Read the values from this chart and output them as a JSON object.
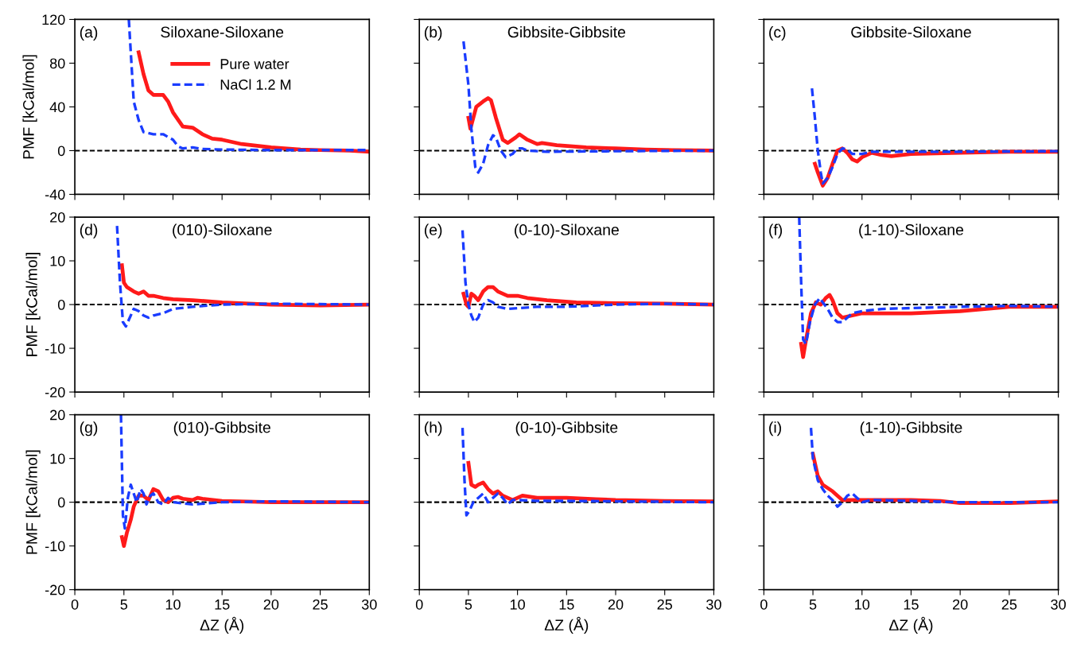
{
  "chart_data": [
    {
      "type": "line",
      "title": "Siloxane-Siloxane",
      "annotations": [
        "(a)"
      ],
      "ylabel": "PMF [kCal/mol]",
      "xlim": [
        0,
        30
      ],
      "xticks": [
        0,
        5,
        10,
        15,
        20,
        25,
        30
      ],
      "ylim": [
        -40,
        120
      ],
      "yticks": [
        -40,
        0,
        40,
        80,
        120
      ],
      "tick_labels": "y",
      "legend": "top right",
      "grid": false,
      "ref_lines": [
        {
          "axis": "y",
          "value": 0,
          "color": "#000000",
          "line_style": "dashed"
        }
      ],
      "series": [
        {
          "name": "Pure water",
          "color": "#ff1a1a",
          "line_style": "solid",
          "x": [
            6.5,
            7,
            7.5,
            8,
            9,
            9.5,
            10,
            11,
            12,
            13,
            14,
            15,
            17,
            20,
            23,
            25,
            28,
            30
          ],
          "values": [
            90,
            70,
            55,
            51,
            51,
            45,
            35,
            22,
            21,
            15,
            11,
            10,
            6,
            3,
            1,
            0.5,
            0,
            -1
          ]
        },
        {
          "name": "NaCl 1.2 M",
          "color": "#1a3cff",
          "line_style": "dashed",
          "x": [
            5.5,
            6,
            6.5,
            7,
            8,
            9,
            10,
            10.5,
            11,
            12,
            13,
            15,
            20,
            25,
            30
          ],
          "values": [
            120,
            45,
            28,
            17,
            15,
            15,
            10,
            4,
            2,
            3,
            1.5,
            1,
            0.5,
            0.5,
            0.5
          ]
        }
      ]
    },
    {
      "type": "line",
      "title": "Gibbsite-Gibbsite",
      "annotations": [
        "(b)"
      ],
      "xlim": [
        0,
        30
      ],
      "xticks": [
        0,
        5,
        10,
        15,
        20,
        25,
        30
      ],
      "ylim": [
        -40,
        120
      ],
      "yticks": [
        -40,
        0,
        40,
        80,
        120
      ],
      "tick_labels": false,
      "grid": false,
      "ref_lines": [
        {
          "axis": "y",
          "value": 0,
          "color": "#000000",
          "line_style": "dashed"
        }
      ],
      "series": [
        {
          "color": "#ff1a1a",
          "line_style": "solid",
          "x": [
            5,
            5.2,
            5.8,
            6.5,
            7,
            7.3,
            7.8,
            8.5,
            9,
            9.8,
            10.2,
            11,
            12,
            12.5,
            14,
            17,
            20,
            23,
            26,
            30
          ],
          "values": [
            30,
            20,
            40,
            45,
            48,
            46,
            30,
            10,
            7,
            12,
            15,
            10,
            6,
            7,
            5,
            3,
            2,
            1,
            0.5,
            0
          ]
        },
        {
          "color": "#1a3cff",
          "line_style": "dashed",
          "x": [
            4.5,
            5,
            5.3,
            5.7,
            6,
            6.5,
            7,
            7.5,
            7.8,
            8.3,
            8.8,
            9.5,
            10,
            10.5,
            11,
            13,
            20,
            30
          ],
          "values": [
            100,
            60,
            20,
            -15,
            -20,
            -12,
            5,
            14,
            12,
            0,
            -6,
            -3,
            2,
            2,
            0,
            -1,
            -0.5,
            0
          ]
        }
      ]
    },
    {
      "type": "line",
      "title": "Gibbsite-Siloxane",
      "annotations": [
        "(c)"
      ],
      "xlim": [
        0,
        30
      ],
      "xticks": [
        0,
        5,
        10,
        15,
        20,
        25,
        30
      ],
      "ylim": [
        -40,
        120
      ],
      "yticks": [
        -40,
        0,
        40,
        80,
        120
      ],
      "tick_labels": false,
      "grid": false,
      "ref_lines": [
        {
          "axis": "y",
          "value": 0,
          "color": "#000000",
          "line_style": "dashed"
        }
      ],
      "series": [
        {
          "color": "#ff1a1a",
          "line_style": "solid",
          "x": [
            5.2,
            5.5,
            6,
            6.5,
            7,
            7.5,
            8,
            8.5,
            9,
            9.5,
            10,
            11,
            12,
            13,
            15,
            20,
            25,
            30
          ],
          "values": [
            -12,
            -20,
            -32,
            -25,
            -12,
            0,
            2,
            -2,
            -8,
            -10,
            -6,
            -2,
            -4,
            -5,
            -3,
            -2,
            -1,
            -1
          ]
        },
        {
          "color": "#1a3cff",
          "line_style": "dashed",
          "x": [
            4.9,
            5.2,
            5.5,
            5.8,
            6,
            6.5,
            7,
            7.5,
            8,
            8.5,
            9,
            10,
            11,
            12,
            15,
            20,
            30
          ],
          "values": [
            57,
            30,
            0,
            -20,
            -30,
            -25,
            -15,
            -3,
            2,
            1,
            -3,
            -3,
            -1,
            -1,
            -1,
            -1,
            -0.5
          ]
        }
      ]
    },
    {
      "type": "line",
      "title": "(010)-Siloxane",
      "annotations": [
        "(d)"
      ],
      "ylabel": "PMF [kCal/mol]",
      "xlim": [
        0,
        30
      ],
      "xticks": [
        0,
        5,
        10,
        15,
        20,
        25,
        30
      ],
      "ylim": [
        -20,
        20
      ],
      "yticks": [
        -20,
        -10,
        0,
        10,
        20
      ],
      "tick_labels": "y",
      "grid": false,
      "ref_lines": [
        {
          "axis": "y",
          "value": 0,
          "color": "#000000",
          "line_style": "dashed"
        }
      ],
      "series": [
        {
          "color": "#ff1a1a",
          "line_style": "solid",
          "x": [
            4.8,
            5,
            5.3,
            6,
            6.5,
            7,
            7.5,
            8,
            9,
            10,
            12,
            15,
            20,
            25,
            30
          ],
          "values": [
            9,
            5,
            4,
            3,
            2.5,
            3,
            2,
            2,
            1.5,
            1.2,
            1,
            0.5,
            0,
            -0.2,
            0
          ]
        },
        {
          "color": "#1a3cff",
          "line_style": "dashed",
          "x": [
            4.3,
            4.6,
            4.9,
            5.2,
            5.6,
            6,
            6.5,
            7,
            7.5,
            8,
            9,
            10,
            12,
            15,
            20,
            30
          ],
          "values": [
            18,
            5,
            -4,
            -5,
            -3,
            -1,
            -1.5,
            -2.5,
            -3,
            -2.5,
            -2,
            -1,
            -0.5,
            0,
            0.2,
            0
          ]
        }
      ]
    },
    {
      "type": "line",
      "title": "(0-10)-Siloxane",
      "annotations": [
        "(e)"
      ],
      "xlim": [
        0,
        30
      ],
      "xticks": [
        0,
        5,
        10,
        15,
        20,
        25,
        30
      ],
      "ylim": [
        -20,
        20
      ],
      "yticks": [
        -20,
        -10,
        0,
        10,
        20
      ],
      "tick_labels": false,
      "grid": false,
      "ref_lines": [
        {
          "axis": "y",
          "value": 0,
          "color": "#000000",
          "line_style": "dashed"
        }
      ],
      "series": [
        {
          "color": "#ff1a1a",
          "line_style": "solid",
          "x": [
            4.5,
            4.8,
            5,
            5.3,
            5.6,
            6,
            6.5,
            7,
            7.5,
            8,
            9,
            10,
            11,
            13,
            16,
            20,
            25,
            30
          ],
          "values": [
            2.5,
            0,
            -0.5,
            2.5,
            2,
            1,
            3,
            4,
            4,
            3,
            2,
            2,
            1.5,
            1,
            0.5,
            0.3,
            0.2,
            0
          ]
        },
        {
          "color": "#1a3cff",
          "line_style": "dashed",
          "x": [
            4.4,
            4.7,
            5,
            5.3,
            5.6,
            6,
            6.5,
            7,
            7.5,
            8,
            9,
            12,
            15,
            20,
            25,
            30
          ],
          "values": [
            17,
            5,
            0,
            -2.5,
            -4,
            -3,
            0,
            1,
            0.5,
            -0.5,
            -1,
            -0.5,
            -0.5,
            0,
            0.2,
            0
          ]
        }
      ]
    },
    {
      "type": "line",
      "title": "(1-10)-Siloxane",
      "annotations": [
        "(f)"
      ],
      "xlim": [
        0,
        30
      ],
      "xticks": [
        0,
        5,
        10,
        15,
        20,
        25,
        30
      ],
      "ylim": [
        -20,
        20
      ],
      "yticks": [
        -20,
        -10,
        0,
        10,
        20
      ],
      "tick_labels": false,
      "grid": false,
      "ref_lines": [
        {
          "axis": "y",
          "value": 0,
          "color": "#000000",
          "line_style": "dashed"
        }
      ],
      "series": [
        {
          "color": "#ff1a1a",
          "line_style": "solid",
          "x": [
            3.8,
            4,
            4.3,
            4.8,
            5.3,
            5.8,
            6.3,
            6.7,
            7,
            7.5,
            8,
            9,
            10,
            12,
            15,
            20,
            25,
            30
          ],
          "values": [
            -9,
            -12,
            -8,
            -2,
            0.5,
            0,
            1.5,
            2.2,
            1,
            -2,
            -3,
            -2.5,
            -2,
            -2,
            -2,
            -1.5,
            -0.5,
            -0.5
          ]
        },
        {
          "color": "#1a3cff",
          "line_style": "dashed",
          "x": [
            3.6,
            3.8,
            4,
            4.3,
            4.7,
            5.2,
            5.7,
            6,
            6.5,
            7,
            7.5,
            8,
            8.5,
            9,
            10,
            12,
            15,
            20,
            25,
            30
          ],
          "values": [
            20,
            5,
            -8,
            -9,
            -4,
            0,
            1.5,
            0.5,
            -1,
            -3,
            -4,
            -4,
            -3,
            -2,
            -1.5,
            -1,
            -0.8,
            -0.5,
            -0.3,
            -0.5
          ]
        }
      ]
    },
    {
      "type": "line",
      "title": "(010)-Gibbsite",
      "annotations": [
        "(g)"
      ],
      "xlabel": "ΔZ (Å)",
      "ylabel": "PMF [kCal/mol]",
      "xlim": [
        0,
        30
      ],
      "xticks": [
        0,
        5,
        10,
        15,
        20,
        25,
        30
      ],
      "ylim": [
        -20,
        20
      ],
      "yticks": [
        -20,
        -10,
        0,
        10,
        20
      ],
      "grid": false,
      "ref_lines": [
        {
          "axis": "y",
          "value": 0,
          "color": "#000000",
          "line_style": "dashed"
        }
      ],
      "series": [
        {
          "color": "#ff1a1a",
          "line_style": "solid",
          "x": [
            4.8,
            5,
            5.3,
            5.7,
            6,
            6.5,
            7,
            7.5,
            8,
            8.5,
            9,
            9.5,
            10,
            10.5,
            11,
            12,
            12.5,
            13,
            15,
            20,
            25,
            30
          ],
          "values": [
            -8,
            -10,
            -7,
            -4,
            -1,
            1.5,
            1.5,
            0.5,
            3,
            2.5,
            0.5,
            0,
            1,
            1.2,
            0.8,
            0.5,
            1,
            0.8,
            0.3,
            0,
            0,
            0
          ]
        },
        {
          "color": "#1a3cff",
          "line_style": "dashed",
          "x": [
            4.7,
            4.9,
            5.1,
            5.4,
            5.7,
            6,
            6.3,
            6.7,
            7,
            7.3,
            7.7,
            8,
            8.5,
            9,
            9.5,
            10,
            12,
            15,
            20,
            30
          ],
          "values": [
            20,
            -3,
            -6,
            1,
            4,
            2,
            0,
            3,
            2,
            -0.5,
            1.5,
            2,
            0,
            -0.5,
            1,
            0,
            -0.5,
            0,
            0.2,
            0
          ]
        }
      ]
    },
    {
      "type": "line",
      "title": "(0-10)-Gibbsite",
      "annotations": [
        "(h)"
      ],
      "xlabel": "ΔZ (Å)",
      "xlim": [
        0,
        30
      ],
      "xticks": [
        0,
        5,
        10,
        15,
        20,
        25,
        30
      ],
      "ylim": [
        -20,
        20
      ],
      "yticks": [
        -20,
        -10,
        0,
        10,
        20
      ],
      "tick_labels": "x",
      "grid": false,
      "ref_lines": [
        {
          "axis": "y",
          "value": 0,
          "color": "#000000",
          "line_style": "dashed"
        }
      ],
      "series": [
        {
          "color": "#ff1a1a",
          "line_style": "solid",
          "x": [
            5,
            5.3,
            5.7,
            6,
            6.5,
            7,
            7.5,
            8,
            8.5,
            9.5,
            10.5,
            12,
            15,
            18,
            20,
            25,
            30
          ],
          "values": [
            9,
            4,
            3.5,
            4,
            4.5,
            3,
            2,
            2.5,
            1.5,
            0.5,
            1.5,
            1,
            1,
            0.7,
            0.5,
            0.3,
            0.2
          ]
        },
        {
          "color": "#1a3cff",
          "line_style": "dashed",
          "x": [
            4.4,
            4.6,
            4.8,
            5.1,
            5.5,
            6,
            6.5,
            7,
            7.5,
            8,
            8.5,
            9,
            9.5,
            10,
            12,
            15,
            20,
            30
          ],
          "values": [
            17,
            5,
            -3,
            -2,
            0,
            1,
            2,
            0,
            1,
            2,
            1,
            -0.5,
            0.5,
            0.5,
            0.3,
            0.3,
            0.2,
            0
          ]
        }
      ]
    },
    {
      "type": "line",
      "title": "(1-10)-Gibbsite",
      "annotations": [
        "(i)"
      ],
      "xlabel": "ΔZ (Å)",
      "xlim": [
        0,
        30
      ],
      "xticks": [
        0,
        5,
        10,
        15,
        20,
        25,
        30
      ],
      "ylim": [
        -20,
        20
      ],
      "yticks": [
        -20,
        -10,
        0,
        10,
        20
      ],
      "tick_labels": "x",
      "grid": false,
      "ref_lines": [
        {
          "axis": "y",
          "value": 0,
          "color": "#000000",
          "line_style": "dashed"
        }
      ],
      "series": [
        {
          "color": "#ff1a1a",
          "line_style": "solid",
          "x": [
            5,
            5.5,
            6,
            7,
            7.5,
            8,
            9,
            10,
            12,
            15,
            18,
            20,
            25,
            30
          ],
          "values": [
            11,
            6,
            4,
            2.5,
            1.5,
            0.5,
            0.5,
            0.5,
            0.5,
            0.5,
            0.3,
            -0.2,
            -0.2,
            0.2
          ]
        },
        {
          "color": "#1a3cff",
          "line_style": "dashed",
          "x": [
            4.8,
            5,
            5.5,
            6,
            6.5,
            7,
            7.5,
            8,
            8.5,
            9,
            9.5,
            10,
            11,
            15,
            20,
            25,
            30
          ],
          "values": [
            17,
            10,
            5,
            3,
            1.5,
            0.5,
            -1,
            0,
            1.5,
            2,
            1,
            0,
            0.5,
            0.3,
            0,
            0,
            0
          ]
        }
      ]
    }
  ]
}
